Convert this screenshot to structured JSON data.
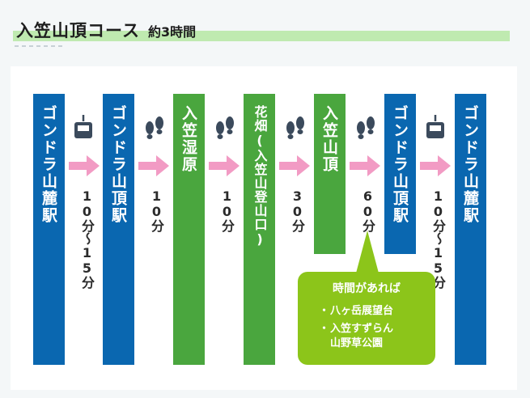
{
  "header": {
    "title": "入笠山頂コース",
    "duration": "約3時間"
  },
  "stations": [
    {
      "name": "ゴンドラ山麓駅",
      "color": "#0a67b0"
    },
    {
      "name": "ゴンドラ山頂駅",
      "color": "#0a67b0"
    },
    {
      "name": "入笠湿原",
      "color": "#4aa63e"
    },
    {
      "name": "花畑(入笠山登山口)",
      "color": "#4aa63e"
    },
    {
      "name": "入笠山頂",
      "color": "#4aa63e"
    },
    {
      "name": "ゴンドラ山頂駅",
      "color": "#0a67b0"
    },
    {
      "name": "ゴンドラ山麓駅",
      "color": "#0a67b0"
    }
  ],
  "segments": [
    {
      "mode": "gondola-icon",
      "time": "10分〜15分"
    },
    {
      "mode": "footprints-icon",
      "time": "10分"
    },
    {
      "mode": "footprints-icon",
      "time": "10分"
    },
    {
      "mode": "footprints-icon",
      "time": "30分"
    },
    {
      "mode": "footprints-icon",
      "time": "60分"
    },
    {
      "mode": "gondola-icon",
      "time": "10分〜15分"
    }
  ],
  "note": {
    "title": "時間があれば",
    "items": [
      {
        "bullet": "・",
        "lines": [
          "八ヶ岳展望台"
        ]
      },
      {
        "bullet": "・",
        "lines": [
          "入笠すずらん",
          "山野草公園"
        ]
      }
    ]
  },
  "colors": {
    "arrow": "#f29bc4",
    "icon": "#3b4a5c",
    "note": "#8cc51a",
    "title_bar": "#bfeab0"
  }
}
